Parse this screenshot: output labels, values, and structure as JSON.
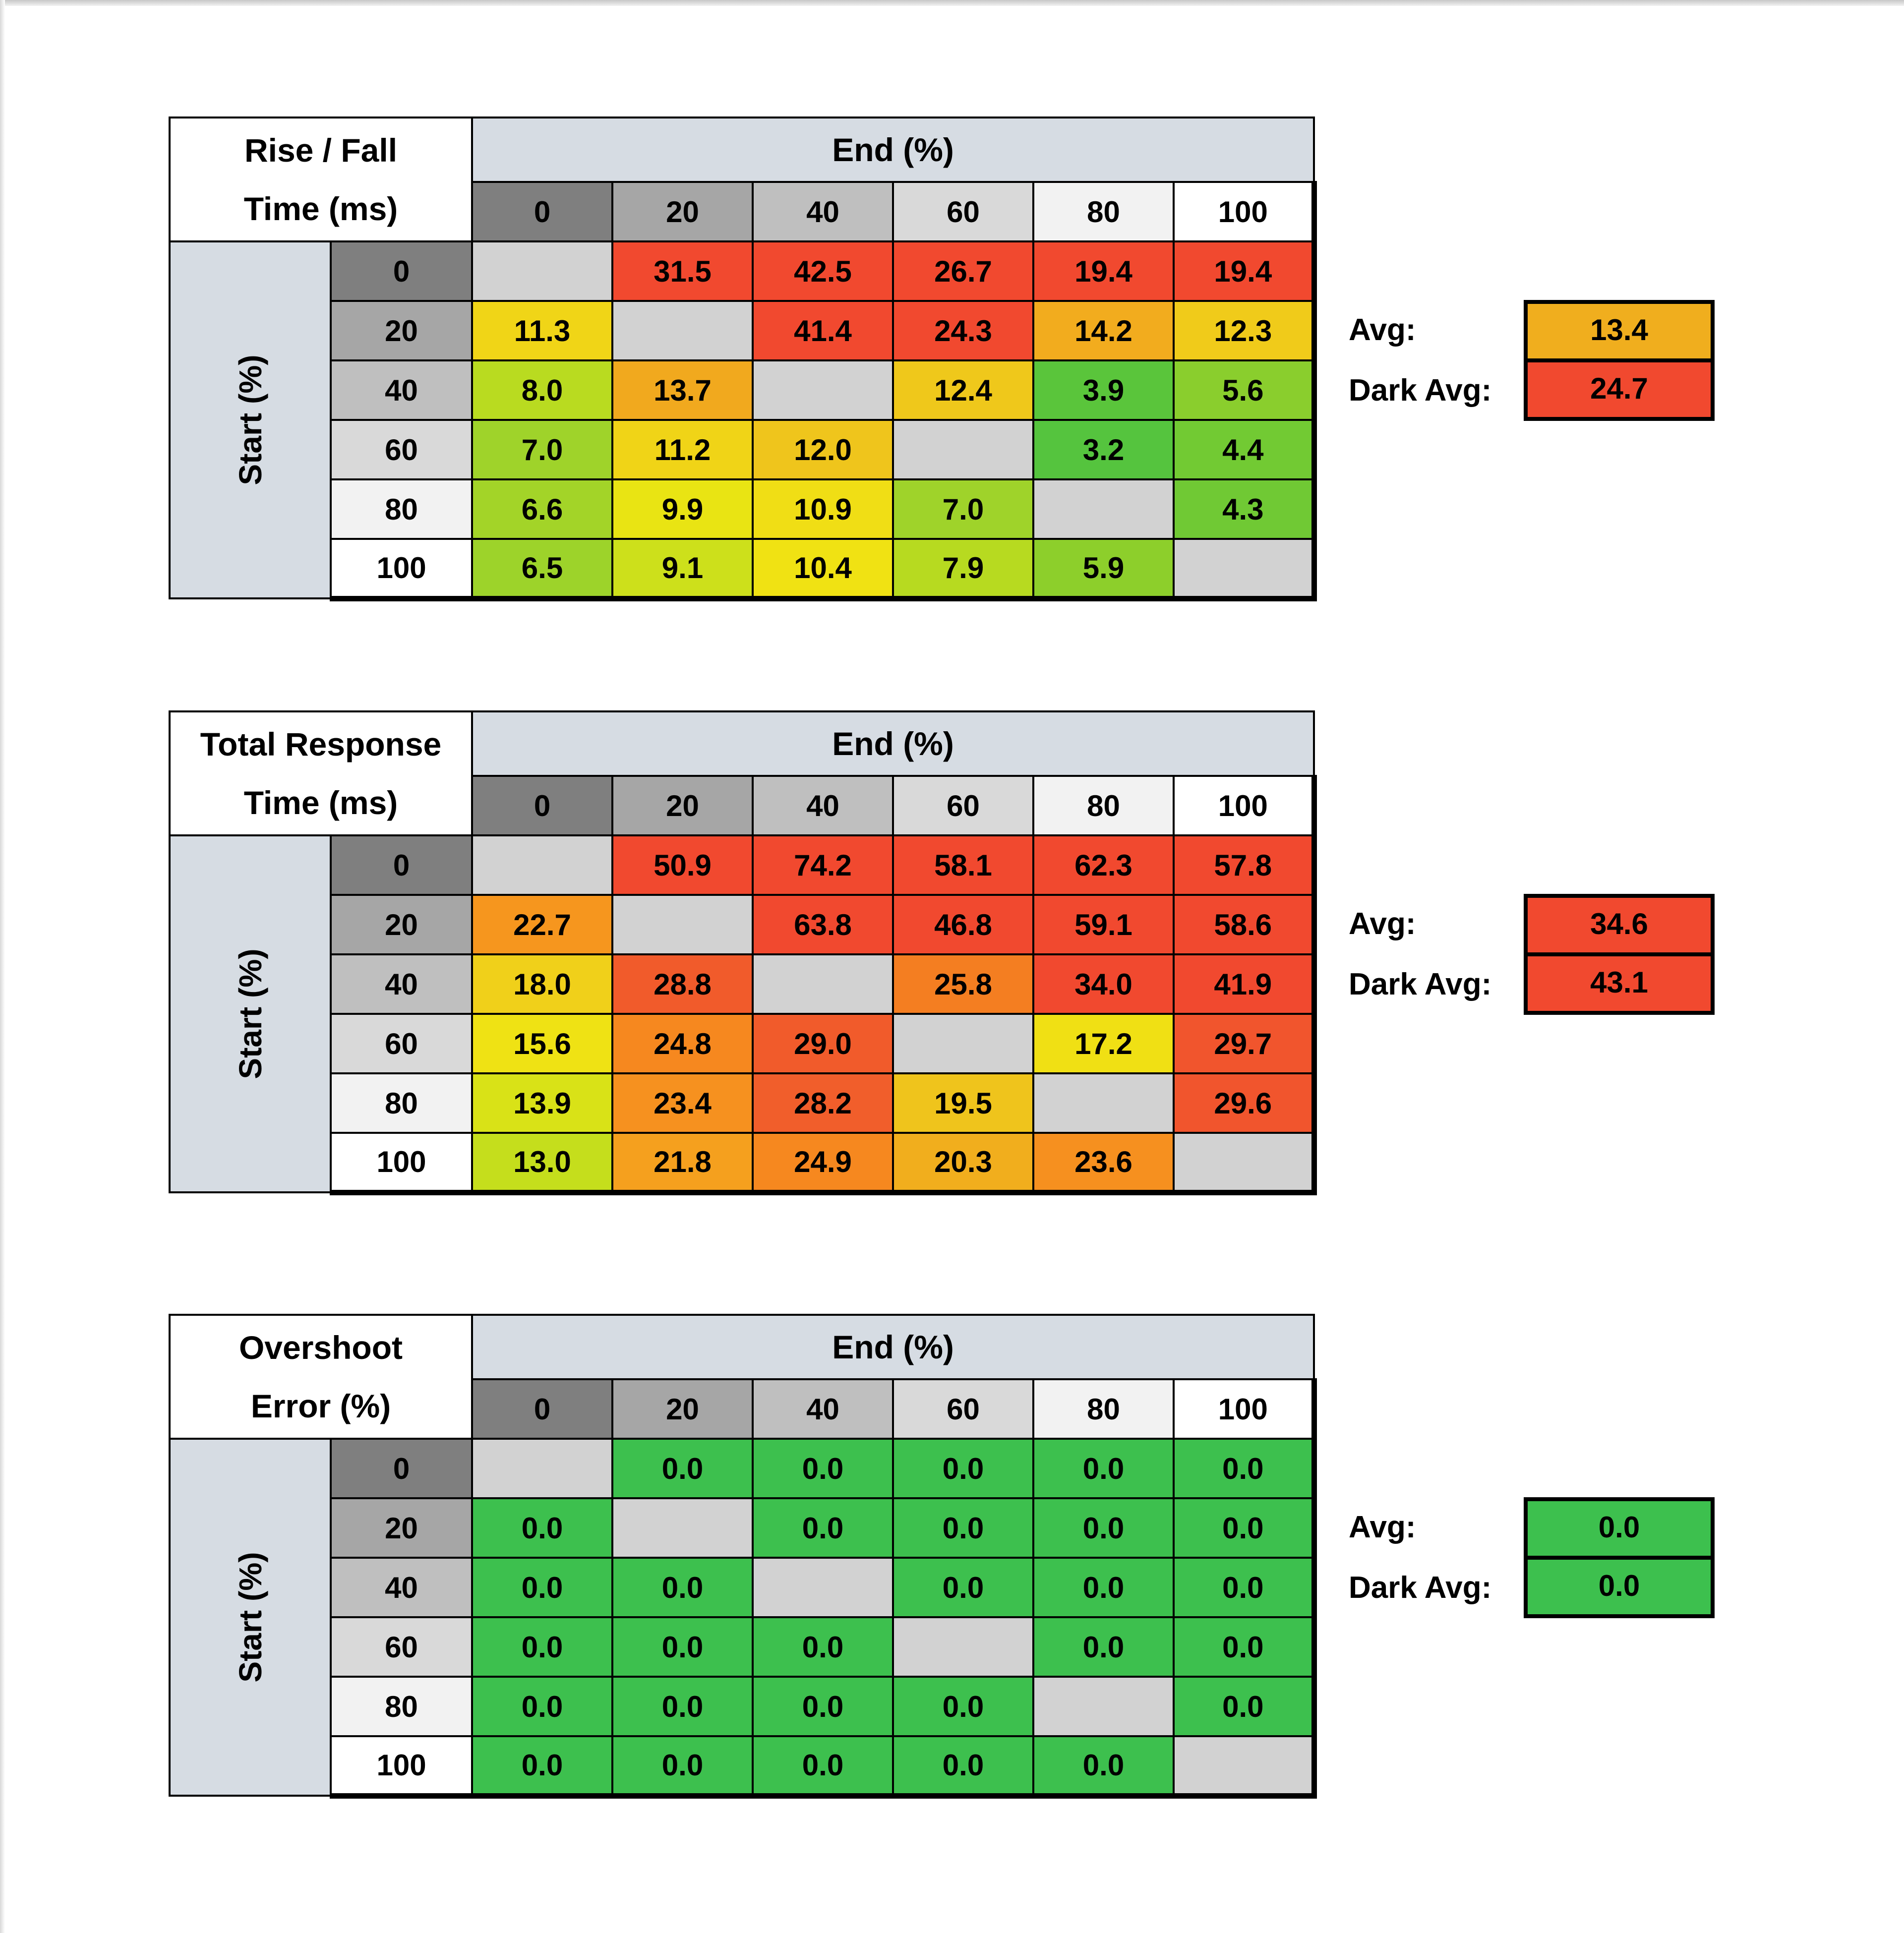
{
  "styles": {
    "background": "#FFFFFF",
    "frame_top_color": "#C7C7C7",
    "frame_left_color": "#D8D8D8",
    "band_color": "#D6DCE3",
    "blank_cell_color": "#D2D2D2",
    "header_shades": [
      "#7F7F7F",
      "#A6A6A6",
      "#BFBFBF",
      "#D9D9D9",
      "#F2F2F2",
      "#FFFFFF"
    ],
    "border_color": "#000000",
    "text_color": "#000000"
  },
  "chart_data": [
    {
      "type": "heatmap",
      "title": "Rise / Fall Time (ms)",
      "title_line1": "Rise / Fall",
      "title_line2": "Time (ms)",
      "x_axis_label": "End (%)",
      "y_axis_label": "Start (%)",
      "x_categories": [
        "0",
        "20",
        "40",
        "60",
        "80",
        "100"
      ],
      "y_categories": [
        "0",
        "20",
        "40",
        "60",
        "80",
        "100"
      ],
      "values": [
        [
          null,
          31.5,
          42.5,
          26.7,
          19.4,
          19.4
        ],
        [
          11.3,
          null,
          41.4,
          24.3,
          14.2,
          12.3
        ],
        [
          8.0,
          13.7,
          null,
          12.4,
          3.9,
          5.6
        ],
        [
          7.0,
          11.2,
          12.0,
          null,
          3.2,
          4.4
        ],
        [
          6.6,
          9.9,
          10.9,
          7.0,
          null,
          4.3
        ],
        [
          6.5,
          9.1,
          10.4,
          7.9,
          5.9,
          null
        ]
      ],
      "cell_colors": [
        [
          null,
          "#F1492F",
          "#F1492F",
          "#F1492F",
          "#F1492F",
          "#F1492F"
        ],
        [
          "#F0D517",
          null,
          "#F1492F",
          "#F1492F",
          "#F2AC1E",
          "#F0CB1A"
        ],
        [
          "#B9DB20",
          "#F1A91E",
          null,
          "#EFC81B",
          "#5AC53B",
          "#8ACE2D"
        ],
        [
          "#9FD32A",
          "#F0D417",
          "#EFC51C",
          null,
          "#55C43E",
          "#72CA33"
        ],
        [
          "#A3D428",
          "#E9E413",
          "#F0DE15",
          "#9FD32A",
          null,
          "#70C934"
        ],
        [
          "#9DD32A",
          "#CDE01B",
          "#F0E213",
          "#B7DA20",
          "#8DCF2B",
          null
        ]
      ],
      "avg_label": "Avg:",
      "avg_value": 13.4,
      "avg_color": "#F0AE1E",
      "dark_avg_label": "Dark Avg:",
      "dark_avg_value": 24.7,
      "dark_avg_color": "#F1492F"
    },
    {
      "type": "heatmap",
      "title": "Total Response Time (ms)",
      "title_line1": "Total Response",
      "title_line2": "Time (ms)",
      "x_axis_label": "End (%)",
      "y_axis_label": "Start (%)",
      "x_categories": [
        "0",
        "20",
        "40",
        "60",
        "80",
        "100"
      ],
      "y_categories": [
        "0",
        "20",
        "40",
        "60",
        "80",
        "100"
      ],
      "values": [
        [
          null,
          50.9,
          74.2,
          58.1,
          62.3,
          57.8
        ],
        [
          22.7,
          null,
          63.8,
          46.8,
          59.1,
          58.6
        ],
        [
          18.0,
          28.8,
          null,
          25.8,
          34.0,
          41.9
        ],
        [
          15.6,
          24.8,
          29.0,
          null,
          17.2,
          29.7
        ],
        [
          13.9,
          23.4,
          28.2,
          19.5,
          null,
          29.6
        ],
        [
          13.0,
          21.8,
          24.9,
          20.3,
          23.6,
          null
        ]
      ],
      "cell_colors": [
        [
          null,
          "#F1492F",
          "#F1492F",
          "#F1492F",
          "#F1492F",
          "#F1492F"
        ],
        [
          "#F6961E",
          null,
          "#F1492F",
          "#F1492F",
          "#F1492F",
          "#F1492F"
        ],
        [
          "#F0D01A",
          "#F15B2B",
          null,
          "#F47E21",
          "#F1492F",
          "#F1492F"
        ],
        [
          "#EFE214",
          "#F6881F",
          "#F15B2B",
          null,
          "#F0E014",
          "#F1552D"
        ],
        [
          "#D9E217",
          "#F6911F",
          "#F15E2B",
          "#EFC41C",
          null,
          "#F1552D"
        ],
        [
          "#C5DE1C",
          "#F5A01E",
          "#F6881F",
          "#F1AE1D",
          "#F6901F",
          null
        ]
      ],
      "avg_label": "Avg:",
      "avg_value": 34.6,
      "avg_color": "#F1492F",
      "dark_avg_label": "Dark Avg:",
      "dark_avg_value": 43.1,
      "dark_avg_color": "#F1492F"
    },
    {
      "type": "heatmap",
      "title": "Overshoot Error (%)",
      "title_line1": "Overshoot",
      "title_line2": "Error (%)",
      "x_axis_label": "End (%)",
      "y_axis_label": "Start (%)",
      "x_categories": [
        "0",
        "20",
        "40",
        "60",
        "80",
        "100"
      ],
      "y_categories": [
        "0",
        "20",
        "40",
        "60",
        "80",
        "100"
      ],
      "values": [
        [
          null,
          0.0,
          0.0,
          0.0,
          0.0,
          0.0
        ],
        [
          0.0,
          null,
          0.0,
          0.0,
          0.0,
          0.0
        ],
        [
          0.0,
          0.0,
          null,
          0.0,
          0.0,
          0.0
        ],
        [
          0.0,
          0.0,
          0.0,
          null,
          0.0,
          0.0
        ],
        [
          0.0,
          0.0,
          0.0,
          0.0,
          null,
          0.0
        ],
        [
          0.0,
          0.0,
          0.0,
          0.0,
          0.0,
          null
        ]
      ],
      "cell_colors": [
        [
          null,
          "#3DC04E",
          "#3DC04E",
          "#3DC04E",
          "#3DC04E",
          "#3DC04E"
        ],
        [
          "#3DC04E",
          null,
          "#3DC04E",
          "#3DC04E",
          "#3DC04E",
          "#3DC04E"
        ],
        [
          "#3DC04E",
          "#3DC04E",
          null,
          "#3DC04E",
          "#3DC04E",
          "#3DC04E"
        ],
        [
          "#3DC04E",
          "#3DC04E",
          "#3DC04E",
          null,
          "#3DC04E",
          "#3DC04E"
        ],
        [
          "#3DC04E",
          "#3DC04E",
          "#3DC04E",
          "#3DC04E",
          null,
          "#3DC04E"
        ],
        [
          "#3DC04E",
          "#3DC04E",
          "#3DC04E",
          "#3DC04E",
          "#3DC04E",
          null
        ]
      ],
      "avg_label": "Avg:",
      "avg_value": 0.0,
      "avg_color": "#3DC04E",
      "dark_avg_label": "Dark Avg:",
      "dark_avg_value": 0.0,
      "dark_avg_color": "#3DC04E"
    }
  ]
}
